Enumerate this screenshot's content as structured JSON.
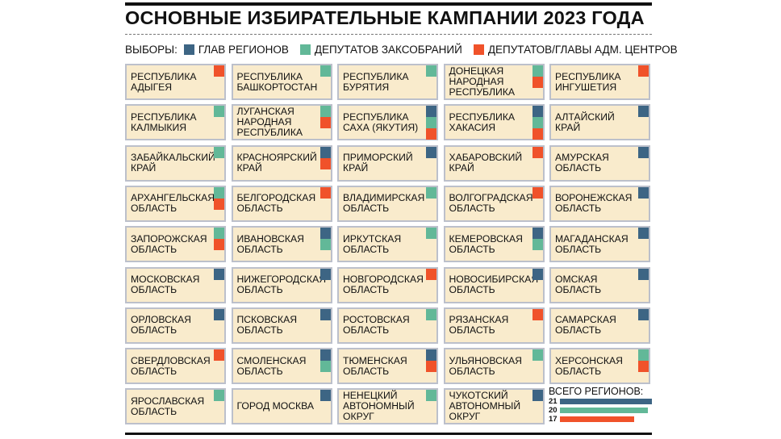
{
  "title": "ОСНОВНЫЕ ИЗБИРАТЕЛЬНЫЕ КАМПАНИИ 2023 ГОДА",
  "legend": {
    "prefix": "ВЫБОРЫ:",
    "items": [
      {
        "key": "b",
        "label": "ГЛАВ РЕГИОНОВ",
        "color": "#3d6584"
      },
      {
        "key": "g",
        "label": "ДЕПУТАТОВ ЗАКСОБРАНИЙ",
        "color": "#62b898"
      },
      {
        "key": "o",
        "label": "ДЕПУТАТОВ/ГЛАВЫ АДМ. ЦЕНТРОВ",
        "color": "#f0522a"
      }
    ]
  },
  "regions": [
    {
      "name": "РЕСПУБЛИКА\nАДЫГЕЯ",
      "marks": [
        "o"
      ]
    },
    {
      "name": "РЕСПУБЛИКА\nБАШКОРТОСТАН",
      "marks": [
        "g"
      ]
    },
    {
      "name": "РЕСПУБЛИКА\nБУРЯТИЯ",
      "marks": [
        "g"
      ]
    },
    {
      "name": "ДОНЕЦКАЯ\nНАРОДНАЯ\nРЕСПУБЛИКА",
      "marks": [
        "g",
        "o"
      ]
    },
    {
      "name": "РЕСПУБЛИКА\nИНГУШЕТИЯ",
      "marks": [
        "o"
      ]
    },
    {
      "name": "РЕСПУБЛИКА\nКАЛМЫКИЯ",
      "marks": [
        "g"
      ]
    },
    {
      "name": "ЛУГАНСКАЯ\nНАРОДНАЯ\nРЕСПУБЛИКА",
      "marks": [
        "g",
        "o"
      ]
    },
    {
      "name": "РЕСПУБЛИКА\nСАХА (ЯКУТИЯ)",
      "marks": [
        "b",
        "g",
        "o"
      ]
    },
    {
      "name": "РЕСПУБЛИКА\nХАКАСИЯ",
      "marks": [
        "b",
        "g",
        "o"
      ]
    },
    {
      "name": "АЛТАЙСКИЙ\nКРАЙ",
      "marks": [
        "b"
      ]
    },
    {
      "name": "ЗАБАЙКАЛЬСКИЙ\nКРАЙ",
      "marks": [
        "g"
      ]
    },
    {
      "name": "КРАСНОЯРСКИЙ\nКРАЙ",
      "marks": [
        "b",
        "o"
      ]
    },
    {
      "name": "ПРИМОРСКИЙ\nКРАЙ",
      "marks": [
        "b"
      ]
    },
    {
      "name": "ХАБАРОВСКИЙ\nКРАЙ",
      "marks": [
        "o"
      ]
    },
    {
      "name": "АМУРСКАЯ\nОБЛАСТЬ",
      "marks": [
        "b"
      ]
    },
    {
      "name": "АРХАНГЕЛЬСКАЯ\nОБЛАСТЬ",
      "marks": [
        "g",
        "o"
      ]
    },
    {
      "name": "БЕЛГОРОДСКАЯ\nОБЛАСТЬ",
      "marks": [
        "o"
      ]
    },
    {
      "name": "ВЛАДИМИРСКАЯ\nОБЛАСТЬ",
      "marks": [
        "g"
      ]
    },
    {
      "name": "ВОЛГОГРАДСКАЯ\nОБЛАСТЬ",
      "marks": [
        "o"
      ]
    },
    {
      "name": "ВОРОНЕЖСКАЯ\nОБЛАСТЬ",
      "marks": [
        "b"
      ]
    },
    {
      "name": "ЗАПОРОЖСКАЯ\nОБЛАСТЬ",
      "marks": [
        "g",
        "o"
      ]
    },
    {
      "name": "ИВАНОВСКАЯ\nОБЛАСТЬ",
      "marks": [
        "b",
        "g"
      ]
    },
    {
      "name": "ИРКУТСКАЯ\nОБЛАСТЬ",
      "marks": [
        "g"
      ]
    },
    {
      "name": "КЕМЕРОВСКАЯ\nОБЛАСТЬ",
      "marks": [
        "b",
        "g"
      ]
    },
    {
      "name": "МАГАДАНСКАЯ\nОБЛАСТЬ",
      "marks": [
        "b"
      ]
    },
    {
      "name": "МОСКОВСКАЯ\nОБЛАСТЬ",
      "marks": [
        "b"
      ]
    },
    {
      "name": "НИЖЕГОРОДСКАЯ\nОБЛАСТЬ",
      "marks": [
        "b"
      ]
    },
    {
      "name": "НОВГОРОДСКАЯ\nОБЛАСТЬ",
      "marks": [
        "o"
      ]
    },
    {
      "name": "НОВОСИБИРСКАЯ\nОБЛАСТЬ",
      "marks": [
        "b"
      ]
    },
    {
      "name": "ОМСКАЯ\nОБЛАСТЬ",
      "marks": [
        "b"
      ]
    },
    {
      "name": "ОРЛОВСКАЯ\nОБЛАСТЬ",
      "marks": [
        "b"
      ]
    },
    {
      "name": "ПСКОВСКАЯ\nОБЛАСТЬ",
      "marks": [
        "b"
      ]
    },
    {
      "name": "РОСТОВСКАЯ\nОБЛАСТЬ",
      "marks": [
        "g"
      ]
    },
    {
      "name": "РЯЗАНСКАЯ\nОБЛАСТЬ",
      "marks": [
        "o"
      ]
    },
    {
      "name": "САМАРСКАЯ\nОБЛАСТЬ",
      "marks": [
        "b"
      ]
    },
    {
      "name": "СВЕРДЛОВСКАЯ\nОБЛАСТЬ",
      "marks": [
        "o"
      ]
    },
    {
      "name": "СМОЛЕНСКАЯ\nОБЛАСТЬ",
      "marks": [
        "b",
        "g"
      ]
    },
    {
      "name": "ТЮМЕНСКАЯ\nОБЛАСТЬ",
      "marks": [
        "b",
        "o"
      ]
    },
    {
      "name": "УЛЬЯНОВСКАЯ\nОБЛАСТЬ",
      "marks": [
        "g"
      ]
    },
    {
      "name": "ХЕРСОНСКАЯ\nОБЛАСТЬ",
      "marks": [
        "g",
        "o"
      ]
    },
    {
      "name": "ЯРОСЛАВСКАЯ\nОБЛАСТЬ",
      "marks": [
        "g"
      ]
    },
    {
      "name": "ГОРОД МОСКВА",
      "marks": [
        "b"
      ]
    },
    {
      "name": "НЕНЕЦКИЙ\nАВТОНОМНЫЙ\nОКРУГ",
      "marks": [
        "g"
      ]
    },
    {
      "name": "ЧУКОТСКИЙ\nАВТОНОМНЫЙ\nОКРУГ",
      "marks": [
        "b"
      ]
    }
  ],
  "totals": {
    "heading": "ВСЕГО РЕГИОНОВ:",
    "items": [
      {
        "key": "b",
        "value": "21"
      },
      {
        "key": "g",
        "value": "20"
      },
      {
        "key": "o",
        "value": "17"
      }
    ]
  }
}
